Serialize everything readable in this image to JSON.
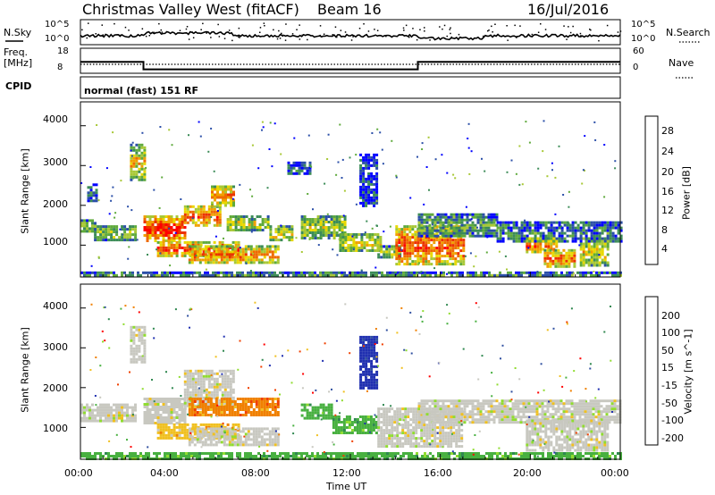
{
  "header": {
    "station": "Christmas Valley West (fitACF)",
    "beam": "Beam 16",
    "date": "16/Jul/2016"
  },
  "nsky_panel": {
    "left_label": "N.Sky",
    "left_ticks": [
      "10^5",
      "10^0"
    ],
    "right_ticks": [
      "10^5",
      "10^0"
    ],
    "right_label": "N.Search"
  },
  "freq_panel": {
    "left_label_1": "Freq.",
    "left_label_2": "[MHz]",
    "left_ticks": [
      "18",
      "8"
    ],
    "right_ticks": [
      "60",
      "0"
    ],
    "right_label": "Nave",
    "freq_steps": [
      {
        "from": 0.0,
        "to": 2.8,
        "value": 13.3
      },
      {
        "from": 2.8,
        "to": 15.0,
        "value": 10.3
      },
      {
        "from": 15.0,
        "to": 24.0,
        "value": 13.3
      }
    ],
    "nave_level": 20
  },
  "cpid_panel": {
    "label": "CPID",
    "mode": "normal (fast) 151 RF"
  },
  "axes": {
    "y_label": "Slant Range [km]",
    "y_ticks": [
      "4000",
      "3000",
      "2000",
      "1000"
    ],
    "x_label": "Time UT",
    "x_ticks": [
      "00:00",
      "04:00",
      "08:00",
      "12:00",
      "16:00",
      "20:00",
      "00:00"
    ]
  },
  "chart_data": [
    {
      "type": "heatmap",
      "title": "Power",
      "x": "time UT (hours)",
      "y": "slant range (km)",
      "ylim": [
        200,
        4600
      ],
      "xlim": [
        0,
        24
      ],
      "colorbar": {
        "label": "Power [dB]",
        "ticks": [
          "28",
          "24",
          "20",
          "16",
          "12",
          "8",
          "4"
        ],
        "colors": [
          "#0000ff",
          "#2b4fa8",
          "#3c8c57",
          "#5faa3c",
          "#a8c836",
          "#e8d800",
          "#f0a000",
          "#ee6a00",
          "#ec3200",
          "#ff0000"
        ]
      },
      "echo_regions": [
        {
          "t0": 0.0,
          "t1": 0.6,
          "r0": 1350,
          "r1": 1650,
          "level": 0.4
        },
        {
          "t0": 0.6,
          "t1": 2.4,
          "r0": 1150,
          "r1": 1500,
          "level": 0.45
        },
        {
          "t0": 0.3,
          "t1": 0.7,
          "r0": 2100,
          "r1": 2550,
          "level": 0.2
        },
        {
          "t0": 2.2,
          "t1": 2.8,
          "r0": 2650,
          "r1": 3550,
          "level": 0.6
        },
        {
          "t0": 2.8,
          "t1": 4.6,
          "r0": 1100,
          "r1": 1750,
          "level": 0.95
        },
        {
          "t0": 4.6,
          "t1": 6.2,
          "r0": 1500,
          "r1": 2000,
          "level": 0.85
        },
        {
          "t0": 5.8,
          "t1": 6.8,
          "r0": 2000,
          "r1": 2500,
          "level": 0.75
        },
        {
          "t0": 3.4,
          "t1": 7.0,
          "r0": 750,
          "r1": 1100,
          "level": 0.9
        },
        {
          "t0": 6.5,
          "t1": 8.4,
          "r0": 1400,
          "r1": 1750,
          "level": 0.5
        },
        {
          "t0": 8.4,
          "t1": 9.4,
          "r0": 1100,
          "r1": 1500,
          "level": 0.55
        },
        {
          "t0": 4.8,
          "t1": 8.8,
          "r0": 550,
          "r1": 1000,
          "level": 0.75
        },
        {
          "t0": 9.8,
          "t1": 11.8,
          "r0": 1200,
          "r1": 1750,
          "level": 0.5
        },
        {
          "t0": 11.5,
          "t1": 13.4,
          "r0": 850,
          "r1": 1300,
          "level": 0.55
        },
        {
          "t0": 13.2,
          "t1": 14.2,
          "r0": 700,
          "r1": 1000,
          "level": 0.45
        },
        {
          "t0": 14.0,
          "t1": 17.0,
          "r0": 500,
          "r1": 1500,
          "level": 0.85
        },
        {
          "t0": 15.0,
          "t1": 18.5,
          "r0": 1200,
          "r1": 1800,
          "level": 0.35
        },
        {
          "t0": 18.5,
          "t1": 24.0,
          "r0": 1100,
          "r1": 1600,
          "level": 0.25
        },
        {
          "t0": 19.8,
          "t1": 21.2,
          "r0": 800,
          "r1": 1200,
          "level": 0.75
        },
        {
          "t0": 20.6,
          "t1": 22.0,
          "r0": 450,
          "r1": 900,
          "level": 0.8
        },
        {
          "t0": 22.2,
          "t1": 23.4,
          "r0": 500,
          "r1": 1200,
          "level": 0.55
        },
        {
          "t0": 9.2,
          "t1": 10.2,
          "r0": 2800,
          "r1": 3100,
          "level": 0.2
        },
        {
          "t0": 12.4,
          "t1": 13.2,
          "r0": 2000,
          "r1": 3300,
          "level": 0.1
        },
        {
          "t0": 0.0,
          "t1": 24.0,
          "r0": 220,
          "r1": 340,
          "level": 0.3
        }
      ]
    },
    {
      "type": "heatmap",
      "title": "Velocity",
      "x": "time UT (hours)",
      "y": "slant range (km)",
      "ylim": [
        200,
        4600
      ],
      "xlim": [
        0,
        24
      ],
      "colorbar": {
        "label": "Velocity [m s^-1]",
        "ticks": [
          "200",
          "100",
          "50",
          "15",
          "-15",
          "-50",
          "-100",
          "-200"
        ],
        "colors": [
          "#2030b0",
          "#3050a0",
          "#308850",
          "#48b040",
          "#90dc30",
          "#c8c8c0",
          "#f0c020",
          "#f08000",
          "#f04000",
          "#ff0000"
        ]
      },
      "echo_regions": [
        {
          "t0": 0.0,
          "t1": 2.4,
          "r0": 1150,
          "r1": 1600,
          "vel": "gray"
        },
        {
          "t0": 2.2,
          "t1": 2.8,
          "r0": 2650,
          "r1": 3550,
          "vel": "gray"
        },
        {
          "t0": 2.8,
          "t1": 4.6,
          "r0": 1100,
          "r1": 1750,
          "vel": "gray"
        },
        {
          "t0": 4.6,
          "t1": 6.8,
          "r0": 1500,
          "r1": 2450,
          "vel": "gray"
        },
        {
          "t0": 3.4,
          "t1": 7.0,
          "r0": 750,
          "r1": 1100,
          "vel": "yellow"
        },
        {
          "t0": 4.8,
          "t1": 8.8,
          "r0": 1300,
          "r1": 1750,
          "vel": "orange"
        },
        {
          "t0": 4.8,
          "t1": 8.8,
          "r0": 550,
          "r1": 1000,
          "vel": "gray"
        },
        {
          "t0": 9.8,
          "t1": 11.2,
          "r0": 1200,
          "r1": 1600,
          "vel": "green"
        },
        {
          "t0": 11.2,
          "t1": 13.2,
          "r0": 850,
          "r1": 1300,
          "vel": "green"
        },
        {
          "t0": 13.2,
          "t1": 17.0,
          "r0": 500,
          "r1": 1500,
          "vel": "gray"
        },
        {
          "t0": 15.0,
          "t1": 24.0,
          "r0": 1100,
          "r1": 1700,
          "vel": "gray"
        },
        {
          "t0": 19.8,
          "t1": 23.4,
          "r0": 450,
          "r1": 1200,
          "vel": "gray"
        },
        {
          "t0": 12.4,
          "t1": 13.2,
          "r0": 2000,
          "r1": 3300,
          "vel": "blue"
        },
        {
          "t0": 0.0,
          "t1": 24.0,
          "r0": 200,
          "r1": 380,
          "vel": "green"
        }
      ]
    }
  ]
}
